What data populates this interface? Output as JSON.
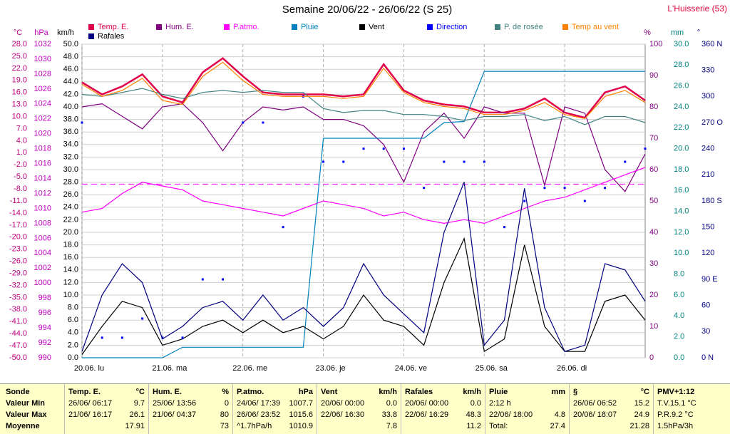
{
  "chart_data": {
    "type": "line",
    "title": "Semaine 20/06/22 - 26/06/22 (S 25)",
    "station": "L'Huisserie (53)",
    "xlim": [
      0,
      7
    ],
    "xticks": [
      {
        "value": 0,
        "label": "20.06. lu"
      },
      {
        "value": 1,
        "label": "21.06. ma"
      },
      {
        "value": 2,
        "label": "22.06. me"
      },
      {
        "value": 3,
        "label": "23.06. je"
      },
      {
        "value": 4,
        "label": "24.06. ve"
      },
      {
        "value": 5,
        "label": "25.06. sa"
      },
      {
        "value": 6,
        "label": "26.06. di"
      }
    ],
    "x": [
      0,
      0.25,
      0.5,
      0.75,
      1,
      1.25,
      1.5,
      1.75,
      2,
      2.25,
      2.5,
      2.75,
      3,
      3.25,
      3.5,
      3.75,
      4,
      4.25,
      4.5,
      4.75,
      5,
      5.25,
      5.5,
      5.75,
      6,
      6.25,
      6.5,
      6.75,
      7
    ],
    "grid": true,
    "reference_pressure": 1013.25,
    "axes": {
      "temp": {
        "unit": "°C",
        "color": "#c00080",
        "lim": [
          -50,
          28
        ],
        "ticks": [
          {
            "value": -50,
            "label": "-50.0"
          },
          {
            "value": -47,
            "label": "-47.0"
          },
          {
            "value": -44,
            "label": "-44.0"
          },
          {
            "value": -41,
            "label": "-41.0"
          },
          {
            "value": -38,
            "label": "-38.0"
          },
          {
            "value": -35,
            "label": "-35.0"
          },
          {
            "value": -32,
            "label": "-32.0"
          },
          {
            "value": -29,
            "label": "-29.0"
          },
          {
            "value": -26,
            "label": "-26.0"
          },
          {
            "value": -23,
            "label": "-23.0"
          },
          {
            "value": -20,
            "label": "-20.0"
          },
          {
            "value": -17,
            "label": "-17.0"
          },
          {
            "value": -14,
            "label": "-14.0"
          },
          {
            "value": -11,
            "label": "-11.0"
          },
          {
            "value": -8,
            "label": "-8.0"
          },
          {
            "value": -5,
            "label": "-5.0"
          },
          {
            "value": -2,
            "label": "-2.0"
          },
          {
            "value": 1,
            "label": "1.0"
          },
          {
            "value": 4,
            "label": "4.0"
          },
          {
            "value": 7,
            "label": "7.0"
          },
          {
            "value": 10,
            "label": "10.0"
          },
          {
            "value": 13,
            "label": "13.0"
          },
          {
            "value": 16,
            "label": "16.0"
          },
          {
            "value": 19,
            "label": "19.0"
          },
          {
            "value": 22,
            "label": "22.0"
          },
          {
            "value": 25,
            "label": "25.0"
          },
          {
            "value": 28,
            "label": "28.0"
          }
        ]
      },
      "hpa": {
        "unit": "hPa",
        "color": "#c000c0",
        "lim": [
          990,
          1032
        ],
        "ticks": [
          990,
          992,
          994,
          996,
          998,
          1000,
          1002,
          1004,
          1006,
          1008,
          1010,
          1012,
          1014,
          1016,
          1018,
          1020,
          1022,
          1024,
          1026,
          1028,
          1030,
          1032
        ]
      },
      "kmh": {
        "unit": "km/h",
        "color": "#000000",
        "lim": [
          0,
          50
        ],
        "ticks": [
          {
            "value": 0,
            "label": "0.0"
          },
          {
            "value": 2,
            "label": "2.0"
          },
          {
            "value": 4,
            "label": "4.0"
          },
          {
            "value": 6,
            "label": "6.0"
          },
          {
            "value": 8,
            "label": "8.0"
          },
          {
            "value": 10,
            "label": "10.0"
          },
          {
            "value": 12,
            "label": "12.0"
          },
          {
            "value": 14,
            "label": "14.0"
          },
          {
            "value": 16,
            "label": "16.0"
          },
          {
            "value": 18,
            "label": "18.0"
          },
          {
            "value": 20,
            "label": "20.0"
          },
          {
            "value": 22,
            "label": "22.0"
          },
          {
            "value": 24,
            "label": "24.0"
          },
          {
            "value": 26,
            "label": "26.0"
          },
          {
            "value": 28,
            "label": "28.0"
          },
          {
            "value": 30,
            "label": "30.0"
          },
          {
            "value": 32,
            "label": "32.0"
          },
          {
            "value": 34,
            "label": "34.0"
          },
          {
            "value": 36,
            "label": "36.0"
          },
          {
            "value": 38,
            "label": "38.0"
          },
          {
            "value": 40,
            "label": "40.0"
          },
          {
            "value": 42,
            "label": "42.0"
          },
          {
            "value": 44,
            "label": "44.0"
          },
          {
            "value": 46,
            "label": "46.0"
          },
          {
            "value": 48,
            "label": "48.0"
          },
          {
            "value": 50,
            "label": "50.0"
          }
        ]
      },
      "pct": {
        "unit": "%",
        "color": "#800080",
        "lim": [
          0,
          100
        ],
        "ticks": [
          0,
          10,
          20,
          30,
          40,
          50,
          60,
          70,
          80,
          90,
          100
        ]
      },
      "mm": {
        "unit": "mm",
        "color": "#008080",
        "lim": [
          0,
          30
        ],
        "ticks": [
          {
            "value": 0,
            "label": "0.0"
          },
          {
            "value": 2,
            "label": "2.0"
          },
          {
            "value": 4,
            "label": "4.0"
          },
          {
            "value": 6,
            "label": "6.0"
          },
          {
            "value": 8,
            "label": "8.0"
          },
          {
            "value": 10,
            "label": "10.0"
          },
          {
            "value": 12,
            "label": "12.0"
          },
          {
            "value": 14,
            "label": "14.0"
          },
          {
            "value": 16,
            "label": "16.0"
          },
          {
            "value": 18,
            "label": "18.0"
          },
          {
            "value": 20,
            "label": "20.0"
          },
          {
            "value": 22,
            "label": "22.0"
          },
          {
            "value": 24,
            "label": "24.0"
          },
          {
            "value": 26,
            "label": "26.0"
          },
          {
            "value": 28,
            "label": "28.0"
          },
          {
            "value": 30,
            "label": "30.0"
          }
        ]
      },
      "deg": {
        "unit": "°",
        "color": "#000080",
        "lim": [
          0,
          360
        ],
        "ticks": [
          {
            "value": 0,
            "label": "0 N"
          },
          30,
          60,
          {
            "value": 90,
            "label": "90 E"
          },
          120,
          150,
          {
            "value": 180,
            "label": "180 S"
          },
          210,
          240,
          {
            "value": 270,
            "label": "270 O"
          },
          300,
          330,
          {
            "value": 360,
            "label": "360 N"
          }
        ]
      }
    },
    "series": [
      {
        "name": "Temp. E.",
        "color": "#e0004a",
        "axis": "temp",
        "width": 2.5,
        "values": [
          18.5,
          15.5,
          17.5,
          20.5,
          15,
          13.5,
          21,
          24.5,
          20,
          16,
          15.5,
          15.5,
          15.5,
          15,
          15.5,
          23,
          16.5,
          14,
          13,
          12.5,
          11,
          11,
          12,
          14.5,
          11,
          9.7,
          16,
          17.5,
          14
        ]
      },
      {
        "name": "Hum. E.",
        "color": "#800080",
        "axis": "pct",
        "values": [
          80,
          81,
          77,
          73,
          80,
          81,
          75,
          66,
          75,
          80,
          79,
          80,
          76,
          76,
          74,
          68,
          56,
          72,
          78,
          70,
          80,
          78,
          78,
          55,
          80,
          78,
          60,
          53,
          65
        ]
      },
      {
        "name": "P.atmo.",
        "color": "#ff00ff",
        "axis": "hpa",
        "values": [
          1009.5,
          1010,
          1012,
          1013.5,
          1013,
          1012.5,
          1011,
          1010.5,
          1010,
          1009.5,
          1009,
          1010,
          1011,
          1010.5,
          1010,
          1009,
          1009.5,
          1008.5,
          1008,
          1008.5,
          1008,
          1009,
          1010,
          1011,
          1011.5,
          1012.5,
          1013.5,
          1014.5,
          1015.5
        ]
      },
      {
        "name": "Pluie",
        "color": "#0080c0",
        "axis": "mm",
        "values": [
          0,
          0,
          0,
          0,
          0,
          1,
          1,
          1,
          1,
          1,
          1,
          1,
          21,
          21,
          21,
          21,
          21,
          21,
          22.5,
          22.6,
          27.4,
          27.4,
          27.4,
          27.4,
          27.4,
          27.4,
          27.4,
          27.4,
          27.4
        ]
      },
      {
        "name": "Vent",
        "color": "#000000",
        "axis": "kmh",
        "values": [
          0.5,
          5,
          9,
          8,
          2,
          3,
          5,
          6,
          4,
          6,
          4,
          5,
          3,
          5,
          10,
          6,
          5,
          2,
          12,
          19,
          1,
          3,
          18,
          5,
          1,
          1,
          9,
          10,
          6
        ]
      },
      {
        "name": "Direction",
        "color": "#0000ff",
        "axis": "deg",
        "style": "dots",
        "values": [
          270,
          23,
          23,
          45,
          23,
          23,
          90,
          90,
          270,
          270,
          150,
          300,
          225,
          225,
          240,
          240,
          240,
          195,
          225,
          225,
          225,
          150,
          180,
          195,
          195,
          180,
          195,
          225,
          240
        ]
      },
      {
        "name": "P. de rosée",
        "color": "#408080",
        "axis": "temp",
        "values": [
          15.5,
          15,
          16,
          17,
          15.5,
          14.5,
          16,
          16.5,
          16,
          16.5,
          16,
          16,
          12,
          11,
          11.5,
          11.5,
          10.5,
          10.5,
          10,
          9,
          10,
          10,
          10.5,
          9,
          10,
          8,
          10,
          10,
          8.5
        ]
      },
      {
        "name": "Temp au vent",
        "color": "#ff8000",
        "axis": "temp",
        "values": [
          18,
          15,
          16.5,
          19.5,
          14,
          13,
          20,
          23.5,
          19,
          15.5,
          15,
          15,
          15,
          14.5,
          15,
          22,
          16,
          13.5,
          12.5,
          12,
          10.5,
          10.5,
          11.5,
          13.5,
          10.5,
          9.5,
          15,
          16.5,
          13.5
        ]
      },
      {
        "name": "Rafales",
        "color": "#000080",
        "axis": "kmh",
        "values": [
          1,
          10,
          15,
          12,
          3,
          5,
          8,
          9,
          6,
          10,
          6,
          8,
          5,
          8,
          15,
          10,
          7,
          4,
          20,
          28,
          2,
          6,
          27,
          8,
          1,
          2,
          15,
          14,
          9
        ]
      }
    ]
  },
  "summary": {
    "row_labels": [
      "Sonde",
      "Valeur Min",
      "Valeur Max",
      "Moyenne"
    ],
    "columns": [
      {
        "name": "Temp. E.",
        "unit": "°C",
        "cells": [
          [
            "26/06/ 06:17",
            "9.7"
          ],
          [
            "21/06/ 16:17",
            "26.1"
          ],
          [
            null,
            "17.91"
          ]
        ]
      },
      {
        "name": "Hum. E.",
        "unit": "%",
        "cells": [
          [
            "25/06/ 13:56",
            "0"
          ],
          [
            "21/06/ 04:37",
            "80"
          ],
          [
            null,
            "73"
          ]
        ]
      },
      {
        "name": "P.atmo.",
        "unit": "hPa",
        "cells": [
          [
            "24/06/ 17:39",
            "1007.7"
          ],
          [
            "26/06/ 23:52",
            "1015.6"
          ],
          [
            "^1.7hPa/h",
            "1010.9"
          ]
        ]
      },
      {
        "name": "Vent",
        "unit": "km/h",
        "cells": [
          [
            "20/06/ 00:00",
            "0.0"
          ],
          [
            "22/06/ 16:30",
            "33.8"
          ],
          [
            null,
            "7.8"
          ]
        ]
      },
      {
        "name": "Rafales",
        "unit": "km/h",
        "cells": [
          [
            "20/06/ 00:00",
            "0.0"
          ],
          [
            "22/06/ 16:29",
            "48.3"
          ],
          [
            null,
            "11.2"
          ]
        ]
      },
      {
        "name": "Pluie",
        "unit": "mm",
        "cells": [
          [
            "2:12 h",
            null
          ],
          [
            "22/06/ 18:00",
            "4.8"
          ],
          [
            "Total:",
            "27.4"
          ]
        ]
      },
      {
        "name": "§",
        "unit": "°C",
        "cells": [
          [
            "26/06/ 06:52",
            "15.2"
          ],
          [
            "20/06/ 18:07",
            "24.9"
          ],
          [
            null,
            "21.28"
          ]
        ]
      },
      {
        "name": "PMV+1:12",
        "unit": null,
        "cells": [
          [
            "T.V.15.1 °C",
            null
          ],
          [
            "P.R.9.2 °C",
            null
          ],
          [
            "1.5hPa/3h",
            null
          ]
        ]
      }
    ]
  }
}
